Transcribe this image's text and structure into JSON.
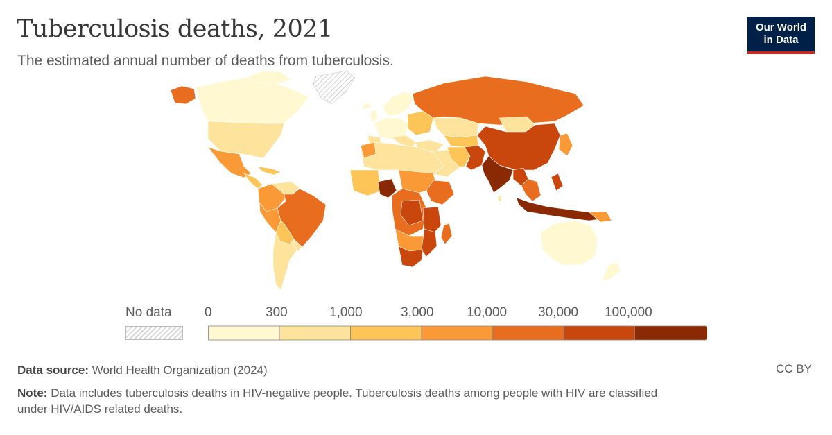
{
  "header": {
    "title": "Tuberculosis deaths, 2021",
    "subtitle": "The estimated annual number of deaths from tuberculosis."
  },
  "logo": {
    "line1": "Our World",
    "line2": "in Data"
  },
  "legend": {
    "no_data_label": "No data",
    "ticks": [
      "0",
      "300",
      "1,000",
      "3,000",
      "10,000",
      "30,000",
      "100,000"
    ],
    "colors": [
      "#fff8d1",
      "#fee39d",
      "#fdc458",
      "#f99a36",
      "#e86d1f",
      "#c9470d",
      "#8a2a05"
    ]
  },
  "footer": {
    "source_label": "Data source:",
    "source_text": "World Health Organization (2024)",
    "note_label": "Note:",
    "note_line1": "Data includes tuberculosis deaths in HIV-negative people. Tuberculosis deaths among people with HIV are classified",
    "note_line2": "under HIV/AIDS related deaths.",
    "license": "CC BY"
  }
}
